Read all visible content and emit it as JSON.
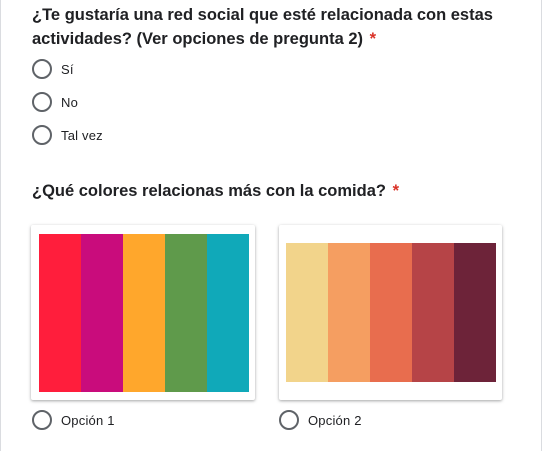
{
  "question1": {
    "title": "¿Te gustaría una red social que esté relacionada con estas actividades? (Ver opciones de pregunta 2)",
    "required_mark": "*",
    "options": [
      {
        "label": "Sí"
      },
      {
        "label": "No"
      },
      {
        "label": "Tal vez"
      }
    ]
  },
  "question2": {
    "title": "¿Qué colores relacionas más con la comida?",
    "required_mark": "*",
    "options": [
      {
        "label": "Opción 1",
        "palette": [
          "#ff1e3c",
          "#c90c7c",
          "#ffa72c",
          "#5f9a4b",
          "#10a9b9"
        ]
      },
      {
        "label": "Opción 2",
        "palette": [
          "#f2d48b",
          "#f59e61",
          "#e86d4e",
          "#b64447",
          "#6d2339"
        ]
      }
    ]
  }
}
